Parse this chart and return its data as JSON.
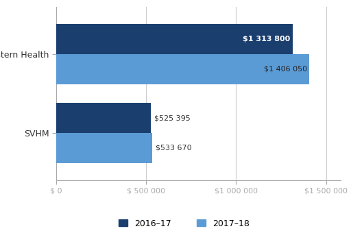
{
  "categories": [
    "SVHM",
    "Western Health"
  ],
  "values_2016_17": [
    525395,
    1313800
  ],
  "values_2017_18": [
    533670,
    1406050
  ],
  "labels_2016_17": [
    "$525 395",
    "$1 313 800"
  ],
  "labels_2017_18": [
    "$533 670",
    "$1 406 050"
  ],
  "color_2016_17": "#1A3F6F",
  "color_2017_18": "#5B9BD5",
  "background_color": "#FFFFFF",
  "xlim": [
    0,
    1580000
  ],
  "xticks": [
    0,
    500000,
    1000000,
    1500000
  ],
  "xticklabels": [
    "$ 0",
    "$ 500 000",
    "$1 000 000",
    "$1 500 000"
  ],
  "bar_height": 0.38,
  "legend_2016_17": "2016–17",
  "legend_2017_18": "2017–18"
}
